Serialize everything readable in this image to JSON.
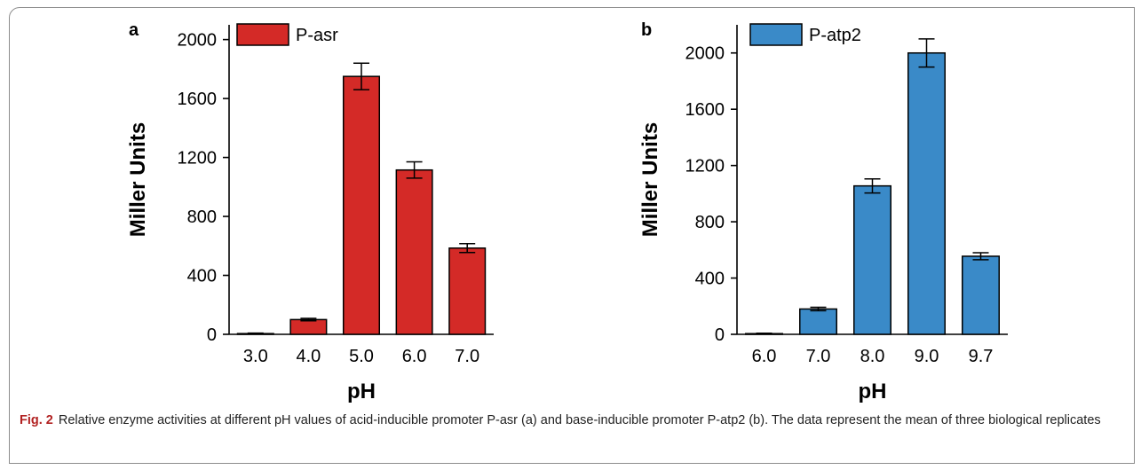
{
  "chart_data": [
    {
      "type": "bar",
      "panel": "a",
      "categories": [
        "3.0",
        "4.0",
        "5.0",
        "6.0",
        "7.0"
      ],
      "series": [
        {
          "name": "P-asr",
          "values": [
            5,
            100,
            1750,
            1115,
            585
          ],
          "errors": [
            3,
            8,
            90,
            55,
            30
          ],
          "color": "#d42a27"
        }
      ],
      "xlabel": "pH",
      "ylabel": "Miller Units",
      "ylim": [
        0,
        2100
      ],
      "yticks": [
        0,
        400,
        800,
        1200,
        1600,
        2000
      ],
      "legend_position": "top-left",
      "grid": false
    },
    {
      "type": "bar",
      "panel": "b",
      "categories": [
        "6.0",
        "7.0",
        "8.0",
        "9.0",
        "9.7"
      ],
      "series": [
        {
          "name": "P-atp2",
          "values": [
            5,
            180,
            1055,
            2000,
            555
          ],
          "errors": [
            3,
            12,
            50,
            100,
            25
          ],
          "color": "#3a8ac8"
        }
      ],
      "xlabel": "pH",
      "ylabel": "Miller Units",
      "ylim": [
        0,
        2200
      ],
      "yticks": [
        0,
        400,
        800,
        1200,
        1600,
        2000
      ],
      "legend_position": "top-left",
      "grid": false
    }
  ],
  "caption": {
    "label": "Fig. 2",
    "text": "Relative enzyme activities at different pH values of acid-inducible promoter P-asr (a) and base-inducible promoter P-atp2 (b). The data represent the mean of three biological replicates"
  }
}
